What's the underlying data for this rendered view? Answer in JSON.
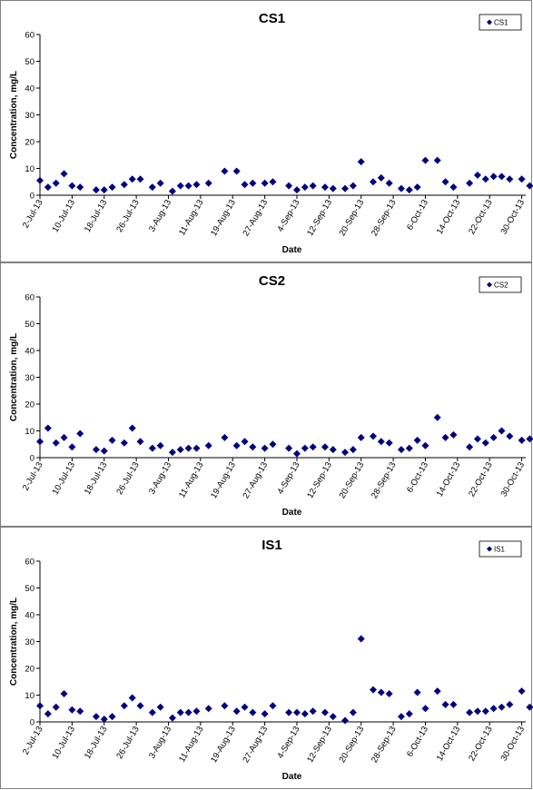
{
  "colors": {
    "marker": "#00007F",
    "axis": "#000000",
    "panel_border": "#808080"
  },
  "shared": {
    "xlabel": "Date",
    "ylabel": "Concentration, mg/L",
    "y_ticks": [
      "0",
      "10",
      "20",
      "30",
      "40",
      "50",
      "60"
    ],
    "x_ticks": [
      "2-Jul-13",
      "10-Jul-13",
      "18-Jul-13",
      "26-Jul-13",
      "3-Aug-13",
      "11-Aug-13",
      "19-Aug-13",
      "27-Aug-13",
      "4-Sep-13",
      "12-Sep-13",
      "20-Sep-13",
      "28-Sep-13",
      "6-Oct-13",
      "14-Oct-13",
      "22-Oct-13",
      "30-Oct-13"
    ]
  },
  "chart_data": [
    {
      "type": "scatter",
      "title": "CS1",
      "xlabel": "Date",
      "ylabel": "Concentration, mg/L",
      "ylim": [
        0,
        60
      ],
      "xlim": [
        "2-Jul-13",
        "31-Oct-13"
      ],
      "legend_position": "top-right",
      "grid": false,
      "series": [
        {
          "name": "CS1",
          "marker": "diamond",
          "points": [
            {
              "x": "2-Jul-13",
              "y": 5.5
            },
            {
              "x": "4-Jul-13",
              "y": 3
            },
            {
              "x": "6-Jul-13",
              "y": 4.5
            },
            {
              "x": "8-Jul-13",
              "y": 8
            },
            {
              "x": "10-Jul-13",
              "y": 3.5
            },
            {
              "x": "12-Jul-13",
              "y": 3
            },
            {
              "x": "16-Jul-13",
              "y": 2
            },
            {
              "x": "18-Jul-13",
              "y": 2
            },
            {
              "x": "20-Jul-13",
              "y": 3
            },
            {
              "x": "23-Jul-13",
              "y": 4
            },
            {
              "x": "25-Jul-13",
              "y": 6
            },
            {
              "x": "27-Jul-13",
              "y": 6
            },
            {
              "x": "30-Jul-13",
              "y": 3
            },
            {
              "x": "1-Aug-13",
              "y": 4.5
            },
            {
              "x": "4-Aug-13",
              "y": 1.5
            },
            {
              "x": "6-Aug-13",
              "y": 3.5
            },
            {
              "x": "8-Aug-13",
              "y": 3.5
            },
            {
              "x": "10-Aug-13",
              "y": 4
            },
            {
              "x": "13-Aug-13",
              "y": 4.5
            },
            {
              "x": "17-Aug-13",
              "y": 9
            },
            {
              "x": "20-Aug-13",
              "y": 9
            },
            {
              "x": "22-Aug-13",
              "y": 4
            },
            {
              "x": "24-Aug-13",
              "y": 4.5
            },
            {
              "x": "27-Aug-13",
              "y": 4.5
            },
            {
              "x": "29-Aug-13",
              "y": 5
            },
            {
              "x": "2-Sep-13",
              "y": 3.5
            },
            {
              "x": "4-Sep-13",
              "y": 2
            },
            {
              "x": "6-Sep-13",
              "y": 3
            },
            {
              "x": "8-Sep-13",
              "y": 3.5
            },
            {
              "x": "11-Sep-13",
              "y": 3
            },
            {
              "x": "13-Sep-13",
              "y": 2.5
            },
            {
              "x": "16-Sep-13",
              "y": 2.5
            },
            {
              "x": "18-Sep-13",
              "y": 3.5
            },
            {
              "x": "20-Sep-13",
              "y": 12.5
            },
            {
              "x": "23-Sep-13",
              "y": 5
            },
            {
              "x": "25-Sep-13",
              "y": 6.5
            },
            {
              "x": "27-Sep-13",
              "y": 4.5
            },
            {
              "x": "30-Sep-13",
              "y": 2.5
            },
            {
              "x": "2-Oct-13",
              "y": 2
            },
            {
              "x": "4-Oct-13",
              "y": 3
            },
            {
              "x": "6-Oct-13",
              "y": 13
            },
            {
              "x": "9-Oct-13",
              "y": 13
            },
            {
              "x": "11-Oct-13",
              "y": 5
            },
            {
              "x": "13-Oct-13",
              "y": 3
            },
            {
              "x": "17-Oct-13",
              "y": 4.5
            },
            {
              "x": "19-Oct-13",
              "y": 7.5
            },
            {
              "x": "21-Oct-13",
              "y": 6
            },
            {
              "x": "23-Oct-13",
              "y": 7
            },
            {
              "x": "25-Oct-13",
              "y": 7
            },
            {
              "x": "27-Oct-13",
              "y": 6
            },
            {
              "x": "30-Oct-13",
              "y": 6
            },
            {
              "x": "1-Nov-13",
              "y": 3.5
            }
          ]
        }
      ]
    },
    {
      "type": "scatter",
      "title": "CS2",
      "xlabel": "Date",
      "ylabel": "Concentration, mg/L",
      "ylim": [
        0,
        60
      ],
      "xlim": [
        "2-Jul-13",
        "31-Oct-13"
      ],
      "legend_position": "top-right",
      "grid": false,
      "series": [
        {
          "name": "CS2",
          "marker": "diamond",
          "points": [
            {
              "x": "2-Jul-13",
              "y": 6
            },
            {
              "x": "4-Jul-13",
              "y": 11
            },
            {
              "x": "6-Jul-13",
              "y": 5.5
            },
            {
              "x": "8-Jul-13",
              "y": 7.5
            },
            {
              "x": "10-Jul-13",
              "y": 4
            },
            {
              "x": "12-Jul-13",
              "y": 9
            },
            {
              "x": "16-Jul-13",
              "y": 3
            },
            {
              "x": "18-Jul-13",
              "y": 2.5
            },
            {
              "x": "20-Jul-13",
              "y": 6.5
            },
            {
              "x": "23-Jul-13",
              "y": 5.5
            },
            {
              "x": "25-Jul-13",
              "y": 11
            },
            {
              "x": "27-Jul-13",
              "y": 6
            },
            {
              "x": "30-Jul-13",
              "y": 3.5
            },
            {
              "x": "1-Aug-13",
              "y": 4.5
            },
            {
              "x": "4-Aug-13",
              "y": 2
            },
            {
              "x": "6-Aug-13",
              "y": 3
            },
            {
              "x": "8-Aug-13",
              "y": 3.5
            },
            {
              "x": "10-Aug-13",
              "y": 3.5
            },
            {
              "x": "13-Aug-13",
              "y": 4.5
            },
            {
              "x": "17-Aug-13",
              "y": 7.5
            },
            {
              "x": "20-Aug-13",
              "y": 4.5
            },
            {
              "x": "22-Aug-13",
              "y": 6
            },
            {
              "x": "24-Aug-13",
              "y": 4
            },
            {
              "x": "27-Aug-13",
              "y": 3.5
            },
            {
              "x": "29-Aug-13",
              "y": 5
            },
            {
              "x": "2-Sep-13",
              "y": 3.5
            },
            {
              "x": "4-Sep-13",
              "y": 1.5
            },
            {
              "x": "6-Sep-13",
              "y": 3.5
            },
            {
              "x": "8-Sep-13",
              "y": 4
            },
            {
              "x": "11-Sep-13",
              "y": 4
            },
            {
              "x": "13-Sep-13",
              "y": 3
            },
            {
              "x": "16-Sep-13",
              "y": 2
            },
            {
              "x": "18-Sep-13",
              "y": 3
            },
            {
              "x": "20-Sep-13",
              "y": 7.5
            },
            {
              "x": "23-Sep-13",
              "y": 8
            },
            {
              "x": "25-Sep-13",
              "y": 6
            },
            {
              "x": "27-Sep-13",
              "y": 5.5
            },
            {
              "x": "30-Sep-13",
              "y": 3
            },
            {
              "x": "2-Oct-13",
              "y": 3.5
            },
            {
              "x": "4-Oct-13",
              "y": 6.5
            },
            {
              "x": "6-Oct-13",
              "y": 4.5
            },
            {
              "x": "9-Oct-13",
              "y": 15
            },
            {
              "x": "11-Oct-13",
              "y": 7.5
            },
            {
              "x": "13-Oct-13",
              "y": 8.5
            },
            {
              "x": "17-Oct-13",
              "y": 4
            },
            {
              "x": "19-Oct-13",
              "y": 7
            },
            {
              "x": "21-Oct-13",
              "y": 5.5
            },
            {
              "x": "23-Oct-13",
              "y": 7.5
            },
            {
              "x": "25-Oct-13",
              "y": 10
            },
            {
              "x": "27-Oct-13",
              "y": 8
            },
            {
              "x": "30-Oct-13",
              "y": 6.5
            },
            {
              "x": "1-Nov-13",
              "y": 7
            }
          ]
        }
      ]
    },
    {
      "type": "scatter",
      "title": "IS1",
      "xlabel": "Date",
      "ylabel": "Concentration, mg/L",
      "ylim": [
        0,
        60
      ],
      "xlim": [
        "2-Jul-13",
        "31-Oct-13"
      ],
      "legend_position": "top-right",
      "grid": false,
      "series": [
        {
          "name": "IS1",
          "marker": "diamond",
          "points": [
            {
              "x": "2-Jul-13",
              "y": 6
            },
            {
              "x": "4-Jul-13",
              "y": 3
            },
            {
              "x": "6-Jul-13",
              "y": 5.5
            },
            {
              "x": "8-Jul-13",
              "y": 10.5
            },
            {
              "x": "10-Jul-13",
              "y": 4.5
            },
            {
              "x": "12-Jul-13",
              "y": 4
            },
            {
              "x": "16-Jul-13",
              "y": 2
            },
            {
              "x": "18-Jul-13",
              "y": 1
            },
            {
              "x": "20-Jul-13",
              "y": 2
            },
            {
              "x": "23-Jul-13",
              "y": 6
            },
            {
              "x": "25-Jul-13",
              "y": 9
            },
            {
              "x": "27-Jul-13",
              "y": 6
            },
            {
              "x": "30-Jul-13",
              "y": 3.5
            },
            {
              "x": "1-Aug-13",
              "y": 5.5
            },
            {
              "x": "4-Aug-13",
              "y": 1.5
            },
            {
              "x": "6-Aug-13",
              "y": 3.5
            },
            {
              "x": "8-Aug-13",
              "y": 3.5
            },
            {
              "x": "10-Aug-13",
              "y": 4
            },
            {
              "x": "13-Aug-13",
              "y": 5
            },
            {
              "x": "17-Aug-13",
              "y": 6
            },
            {
              "x": "20-Aug-13",
              "y": 4
            },
            {
              "x": "22-Aug-13",
              "y": 5.5
            },
            {
              "x": "24-Aug-13",
              "y": 3.5
            },
            {
              "x": "27-Aug-13",
              "y": 3
            },
            {
              "x": "29-Aug-13",
              "y": 6
            },
            {
              "x": "2-Sep-13",
              "y": 3.5
            },
            {
              "x": "4-Sep-13",
              "y": 3.5
            },
            {
              "x": "6-Sep-13",
              "y": 3
            },
            {
              "x": "8-Sep-13",
              "y": 4
            },
            {
              "x": "11-Sep-13",
              "y": 3.5
            },
            {
              "x": "13-Sep-13",
              "y": 2
            },
            {
              "x": "16-Sep-13",
              "y": 0.5
            },
            {
              "x": "18-Sep-13",
              "y": 3.5
            },
            {
              "x": "20-Sep-13",
              "y": 31
            },
            {
              "x": "23-Sep-13",
              "y": 12
            },
            {
              "x": "25-Sep-13",
              "y": 11
            },
            {
              "x": "27-Sep-13",
              "y": 10.5
            },
            {
              "x": "30-Sep-13",
              "y": 2
            },
            {
              "x": "2-Oct-13",
              "y": 3
            },
            {
              "x": "4-Oct-13",
              "y": 11
            },
            {
              "x": "6-Oct-13",
              "y": 5
            },
            {
              "x": "9-Oct-13",
              "y": 11.5
            },
            {
              "x": "11-Oct-13",
              "y": 6.5
            },
            {
              "x": "13-Oct-13",
              "y": 6.5
            },
            {
              "x": "17-Oct-13",
              "y": 3.5
            },
            {
              "x": "19-Oct-13",
              "y": 4
            },
            {
              "x": "21-Oct-13",
              "y": 4
            },
            {
              "x": "23-Oct-13",
              "y": 5
            },
            {
              "x": "25-Oct-13",
              "y": 5.5
            },
            {
              "x": "27-Oct-13",
              "y": 6.5
            },
            {
              "x": "30-Oct-13",
              "y": 11.5
            },
            {
              "x": "1-Nov-13",
              "y": 5.5
            }
          ]
        }
      ]
    }
  ]
}
